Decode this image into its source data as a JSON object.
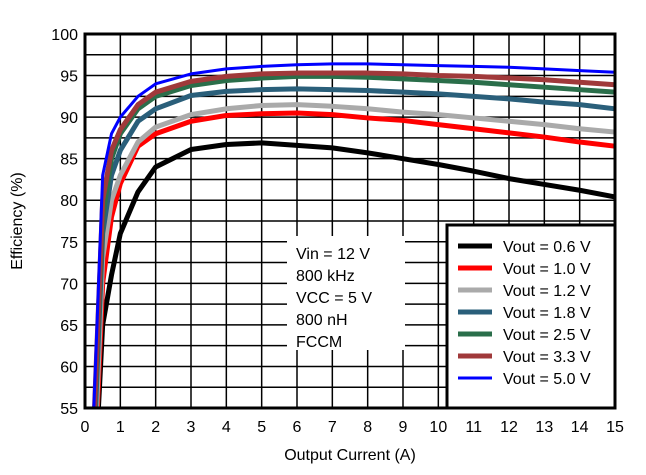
{
  "chart_data": {
    "type": "line",
    "title": "",
    "xlabel": "Output Current (A)",
    "ylabel": "Efficiency (%)",
    "xlim": [
      0,
      15
    ],
    "ylim": [
      55,
      100
    ],
    "xticks": [
      "0",
      "1",
      "2",
      "3",
      "4",
      "5",
      "6",
      "7",
      "8",
      "9",
      "10",
      "11",
      "12",
      "13",
      "14",
      "15"
    ],
    "yticks": [
      "55",
      "60",
      "65",
      "70",
      "75",
      "80",
      "85",
      "90",
      "95",
      "100"
    ],
    "grid": true,
    "legend_placement": "bottom-right",
    "annotation": [
      "Vin = 12 V",
      "800 kHz",
      "VCC = 5 V",
      "800 nH",
      "FCCM"
    ],
    "series": [
      {
        "name": "Vout = 0.6 V",
        "color": "#000000",
        "x": [
          0.38,
          0.5,
          0.75,
          1,
          1.5,
          2,
          3,
          4,
          5,
          6,
          7,
          8,
          9,
          10,
          11,
          12,
          13,
          14,
          15
        ],
        "y": [
          55,
          65,
          71,
          76,
          81,
          84,
          86.1,
          86.7,
          86.9,
          86.6,
          86.3,
          85.7,
          85,
          84.3,
          83.5,
          82.6,
          81.9,
          81.2,
          80.4
        ]
      },
      {
        "name": "Vout = 1.0 V",
        "color": "#ff0000",
        "x": [
          0.35,
          0.5,
          0.75,
          1,
          1.5,
          2,
          3,
          4,
          5,
          6,
          7,
          8,
          9,
          10,
          11,
          12,
          13,
          14,
          15
        ],
        "y": [
          55,
          70,
          78,
          82,
          86.5,
          88,
          89.5,
          90.2,
          90.4,
          90.5,
          90.3,
          89.9,
          89.6,
          89.1,
          88.6,
          88.1,
          87.6,
          87,
          86.5
        ]
      },
      {
        "name": "Vout = 1.2 V",
        "color": "#aaaaaa",
        "x": [
          0.33,
          0.5,
          0.75,
          1,
          1.5,
          2,
          3,
          4,
          5,
          6,
          7,
          8,
          9,
          10,
          11,
          12,
          13,
          14,
          15
        ],
        "y": [
          55,
          73,
          80,
          83,
          87,
          88.8,
          90.3,
          91,
          91.4,
          91.5,
          91.3,
          91,
          90.6,
          90.3,
          89.9,
          89.5,
          89.1,
          88.6,
          88.2
        ]
      },
      {
        "name": "Vout = 1.8 V",
        "color": "#2a5f7a",
        "x": [
          0.3,
          0.5,
          0.75,
          1,
          1.5,
          2,
          3,
          4,
          5,
          6,
          7,
          8,
          9,
          10,
          11,
          12,
          13,
          14,
          15
        ],
        "y": [
          55,
          76,
          83,
          86,
          89.5,
          91,
          92.6,
          93.1,
          93.3,
          93.4,
          93.3,
          93.2,
          93,
          92.8,
          92.5,
          92.2,
          91.8,
          91.5,
          91
        ]
      },
      {
        "name": "Vout = 2.5 V",
        "color": "#2a6e4a",
        "x": [
          0.28,
          0.5,
          0.75,
          1,
          1.5,
          2,
          3,
          4,
          5,
          6,
          7,
          8,
          9,
          10,
          11,
          12,
          13,
          14,
          15
        ],
        "y": [
          55,
          78,
          85,
          88,
          91,
          92.5,
          93.8,
          94.4,
          94.7,
          94.9,
          94.9,
          94.8,
          94.6,
          94.4,
          94.2,
          93.9,
          93.6,
          93.3,
          93
        ]
      },
      {
        "name": "Vout = 3.3 V",
        "color": "#a0393a",
        "x": [
          0.27,
          0.5,
          0.75,
          1,
          1.5,
          2,
          3,
          4,
          5,
          6,
          7,
          8,
          9,
          10,
          11,
          12,
          13,
          14,
          15
        ],
        "y": [
          55,
          80,
          86,
          88.5,
          91.5,
          93,
          94.3,
          94.9,
          95.2,
          95.3,
          95.3,
          95.3,
          95.2,
          95,
          94.9,
          94.7,
          94.5,
          94.2,
          93.9
        ]
      },
      {
        "name": "Vout = 5.0 V",
        "color": "#0000ff",
        "x": [
          0.25,
          0.5,
          0.75,
          1,
          1.5,
          2,
          3,
          4,
          5,
          6,
          7,
          8,
          9,
          10,
          11,
          12,
          13,
          14,
          15
        ],
        "y": [
          55,
          83,
          88,
          90,
          92.5,
          94,
          95.2,
          95.8,
          96.1,
          96.3,
          96.4,
          96.4,
          96.3,
          96.2,
          96.1,
          96,
          95.8,
          95.6,
          95.4
        ]
      }
    ]
  }
}
